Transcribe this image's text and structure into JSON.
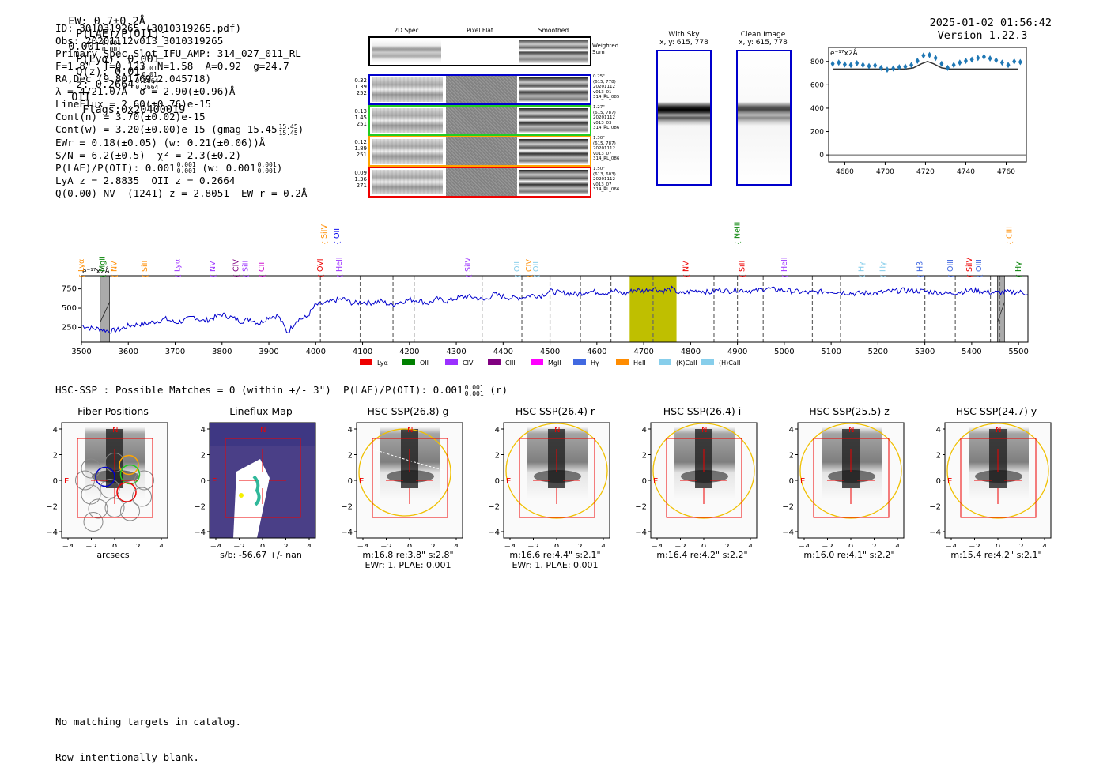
{
  "header": {
    "ew": "EW: 0.7±0.2Å",
    "plae_label": "P(LAE)/P(OII):",
    "plae_val": "0.001",
    "plae_hi": "0.001",
    "plae_lo": "0.001",
    "plya": "P(Lyα): 0.001",
    "qz_label": "Q(z): 0.01",
    "qz_hi": "0.01",
    "qz_lo": "0.01",
    "z_label": "z: 0.2664",
    "z_hi": "0.2664",
    "z_lo": "0.2664",
    "z_line": "OII",
    "flags": "Flags:0x20400019",
    "timestamp": "2025-01-02 01:56:42",
    "version": "Version 1.22.3"
  },
  "info": {
    "id": "ID: 3010319265 (3010319265.pdf)",
    "obs": "Obs: 20201112v013_3010319265",
    "primary": "Primary Spec_Slot_IFU_AMP: 314_027_011_RL",
    "params": "F=1.8\"  T=0.123  N=1.58  A=0.92  g=24.7",
    "radec": "RA,Dec (9.801769,2.045718)",
    "lambda": "λ = 4721.07Å  σ = 2.90(±0.96)Å",
    "lineflux": "LineFlux = 2.60(±0.76)e-15",
    "contn": "Cont(n) = 3.70(±0.02)e-15",
    "contw": "Cont(w) = 3.20(±0.00)e-15 (gmag 15.45",
    "gmag_hi": "15.45",
    "gmag_lo": "15.45",
    "ewr": "EWr = 0.18(±0.05) (w: 0.21(±0.06))Å",
    "sn": "S/N = 6.2(±0.5)  χ² = 2.3(±0.2)",
    "plae2_a": "P(LAE)/P(OII): 0.001",
    "plae2_b": "(w: 0.001",
    "plae2_hi": "0.001",
    "plae2_lo": "0.001",
    "plae2_whi": "0.001",
    "plae2_wlo": "0.001",
    "lya": "LyA z = 2.8835  OII z = 0.2664",
    "q": "Q(0.00) NV  (1241) z = 2.8051  EW r = 0.2Å"
  },
  "cutouts": {
    "col_2d": "2D Spec",
    "col_flat": "Pixel Flat",
    "col_smooth": "Smoothed",
    "weighted": "Weighted Sum",
    "rows": [
      {
        "nums": [
          "0.32",
          "1.39",
          "252"
        ],
        "meta": [
          "0.25\"",
          "(615, 778)",
          "20201112",
          "v013_01",
          "314_RL_085"
        ],
        "color": "#0000cc"
      },
      {
        "nums": [
          "0.13",
          "1.45",
          "251"
        ],
        "meta": [
          "1.27\"",
          "(615, 787)",
          "20201112",
          "v013_03",
          "314_RL_086"
        ],
        "color": "#22cc22"
      },
      {
        "nums": [
          "0.12",
          "1.89",
          "251"
        ],
        "meta": [
          "1.30\"",
          "(615, 787)",
          "20201112",
          "v013_07",
          "314_RL_086"
        ],
        "color": "#ffa500"
      },
      {
        "nums": [
          "0.09",
          "1.36",
          "271"
        ],
        "meta": [
          "1.50\"",
          "(613, 603)",
          "20201112",
          "v013_07",
          "314_RL_066"
        ],
        "color": "#ee0000"
      }
    ]
  },
  "sky": {
    "with_sky": "With Sky",
    "with_sky_xy": "x, y: 615, 778",
    "clean": "Clean Image",
    "clean_xy": "x, y: 615, 778"
  },
  "chart_data": [
    {
      "type": "scatter",
      "name": "line-zoom",
      "ylabel": "e⁻¹⁷x2Å",
      "xlim": [
        4672,
        4770
      ],
      "ylim": [
        -60,
        920
      ],
      "xticks": [
        4680,
        4700,
        4720,
        4740,
        4760
      ],
      "yticks": [
        0,
        200,
        400,
        600,
        800
      ],
      "series": [
        {
          "name": "data",
          "color": "#1f77b4",
          "x": [
            4674,
            4677,
            4680,
            4683,
            4686,
            4689,
            4692,
            4695,
            4698,
            4701,
            4704,
            4707,
            4710,
            4713,
            4716,
            4719,
            4722,
            4725,
            4728,
            4731,
            4734,
            4737,
            4740,
            4743,
            4746,
            4749,
            4752,
            4755,
            4758,
            4761,
            4764,
            4767
          ],
          "y": [
            780,
            790,
            775,
            770,
            785,
            770,
            760,
            765,
            745,
            730,
            740,
            750,
            755,
            770,
            805,
            850,
            855,
            830,
            780,
            745,
            770,
            790,
            805,
            815,
            830,
            840,
            825,
            810,
            790,
            770,
            800,
            795
          ]
        },
        {
          "name": "fit",
          "color": "#333333",
          "x": [
            4674,
            4700,
            4710,
            4714,
            4718,
            4721,
            4724,
            4728,
            4732,
            4740,
            4766
          ],
          "y": [
            735,
            735,
            735,
            745,
            780,
            800,
            780,
            745,
            735,
            735,
            735
          ]
        }
      ]
    },
    {
      "type": "line",
      "name": "full-spectrum",
      "ylabel": "e⁻¹⁷x2Å",
      "xlim": [
        3500,
        5520
      ],
      "ylim": [
        60,
        920
      ],
      "xticks": [
        3500,
        3600,
        3700,
        3800,
        3900,
        4000,
        4100,
        4200,
        4300,
        4400,
        4500,
        4600,
        4700,
        4800,
        4900,
        5000,
        5100,
        5200,
        5300,
        5400,
        5500
      ],
      "yticks": [
        250,
        500,
        750
      ],
      "color": "#0000cc",
      "anchors_x": [
        3500,
        3520,
        3540,
        3560,
        3580,
        3600,
        3620,
        3640,
        3660,
        3680,
        3700,
        3720,
        3740,
        3760,
        3780,
        3800,
        3820,
        3840,
        3860,
        3880,
        3900,
        3920,
        3940,
        3960,
        3980,
        4000,
        4020,
        4040,
        4060,
        4080,
        4100,
        4120,
        4140,
        4160,
        4180,
        4200,
        4220,
        4240,
        4260,
        4280,
        4300,
        4320,
        4340,
        4360,
        4380,
        4400,
        4420,
        4440,
        4460,
        4480,
        4500,
        4520,
        4540,
        4560,
        4580,
        4600,
        4620,
        4640,
        4660,
        4680,
        4700,
        4720,
        4740,
        4760,
        4780,
        4800,
        4820,
        4840,
        4860,
        4880,
        4900,
        4920,
        4940,
        4960,
        4980,
        5000,
        5050,
        5100,
        5150,
        5200,
        5250,
        5300,
        5350,
        5400,
        5450,
        5500,
        5520
      ],
      "anchors_y": [
        280,
        240,
        230,
        200,
        220,
        270,
        290,
        300,
        330,
        360,
        310,
        340,
        390,
        330,
        370,
        420,
        380,
        330,
        360,
        300,
        390,
        400,
        180,
        350,
        380,
        540,
        560,
        600,
        620,
        560,
        580,
        570,
        590,
        540,
        580,
        610,
        600,
        560,
        620,
        590,
        630,
        650,
        640,
        600,
        680,
        650,
        630,
        640,
        670,
        660,
        720,
        700,
        690,
        680,
        720,
        710,
        700,
        720,
        680,
        740,
        720,
        760,
        720,
        750,
        680,
        720,
        730,
        700,
        740,
        720,
        740,
        730,
        720,
        760,
        740,
        730,
        700,
        720,
        690,
        700,
        730,
        720,
        690,
        730,
        700,
        710,
        690
      ],
      "sky_bands": [
        [
          3540,
          3560
        ],
        [
          5455,
          5470
        ]
      ],
      "highlight": [
        4670,
        4770
      ],
      "dashed": [
        4010,
        4095,
        4165,
        4210,
        4355,
        4440,
        4500,
        4565,
        4630,
        4720,
        4850,
        4900,
        4955,
        5060,
        5120,
        5300,
        5365,
        5440,
        5460
      ],
      "lines": [
        {
          "label": "Lyα",
          "x": 3500,
          "color": "#ff8c00",
          "row": 1
        },
        {
          "label": "MgII",
          "x": 3545,
          "color": "#008000",
          "row": 1
        },
        {
          "label": "NV",
          "x": 3570,
          "color": "#ff8c00",
          "row": 1
        },
        {
          "label": "SiII",
          "x": 3635,
          "color": "#ff8c00",
          "row": 1
        },
        {
          "label": "Lyα",
          "x": 3705,
          "color": "#9b30ff",
          "row": 1
        },
        {
          "label": "NV",
          "x": 3780,
          "color": "#9b30ff",
          "row": 1
        },
        {
          "label": "CIV",
          "x": 3830,
          "color": "#800080",
          "row": 1
        },
        {
          "label": "SiII",
          "x": 3850,
          "color": "#9b30ff",
          "row": 1
        },
        {
          "label": "CII",
          "x": 3885,
          "color": "#cc00cc",
          "row": 1
        },
        {
          "label": "OVI",
          "x": 4010,
          "color": "#ee0000",
          "row": 1
        },
        {
          "label": "SiIV",
          "x": 4018,
          "color": "#ff8c00",
          "row": 0
        },
        {
          "label": "OII",
          "x": 4045,
          "color": "#0000ee",
          "row": 0
        },
        {
          "label": "HeII",
          "x": 4050,
          "color": "#9b30ff",
          "row": 1
        },
        {
          "label": "SiIV",
          "x": 4325,
          "color": "#9b30ff",
          "row": 1
        },
        {
          "label": "OII",
          "x": 4430,
          "color": "#87ceeb",
          "row": 1
        },
        {
          "label": "CIV",
          "x": 4455,
          "color": "#ff8c00",
          "row": 1
        },
        {
          "label": "OII",
          "x": 4470,
          "color": "#87ceeb",
          "row": 1
        },
        {
          "label": "NV",
          "x": 4790,
          "color": "#ee0000",
          "row": 1
        },
        {
          "label": "NeIII",
          "x": 4900,
          "color": "#008000",
          "row": 0
        },
        {
          "label": "SiII",
          "x": 4910,
          "color": "#ee0000",
          "row": 1
        },
        {
          "label": "HeII",
          "x": 5000,
          "color": "#9b30ff",
          "row": 1
        },
        {
          "label": "Hγ",
          "x": 5165,
          "color": "#87ceeb",
          "row": 1
        },
        {
          "label": "Hγ",
          "x": 5210,
          "color": "#87ceeb",
          "row": 1
        },
        {
          "label": "Hβ",
          "x": 5290,
          "color": "#4169e1",
          "row": 1
        },
        {
          "label": "OIII",
          "x": 5355,
          "color": "#4169e1",
          "row": 1
        },
        {
          "label": "SiIV",
          "x": 5395,
          "color": "#ee0000",
          "row": 1
        },
        {
          "label": "OIII",
          "x": 5415,
          "color": "#4169e1",
          "row": 1
        },
        {
          "label": "CIII",
          "x": 5480,
          "color": "#ff8c00",
          "row": 0
        },
        {
          "label": "Hγ",
          "x": 5500,
          "color": "#008000",
          "row": 1
        }
      ],
      "legend": [
        {
          "label": "Lyα",
          "color": "#ee0000"
        },
        {
          "label": "OII",
          "color": "#008000"
        },
        {
          "label": "CIV",
          "color": "#9b30ff"
        },
        {
          "label": "CIII",
          "color": "#800080"
        },
        {
          "label": "MgII",
          "color": "#ff00ff"
        },
        {
          "label": "Hγ",
          "color": "#4169e1"
        },
        {
          "label": "HeII",
          "color": "#ff8c00"
        },
        {
          "label": "(K)CaII",
          "color": "#87ceeb"
        },
        {
          "label": "(H)CaII",
          "color": "#87ceeb"
        }
      ]
    }
  ],
  "hsc": {
    "header": "HSC-SSP : Possible Matches = 0 (within +/- 3\")  P(LAE)/P(OII): 0.001",
    "header_hi": "0.001",
    "header_lo": "0.001",
    "header_tail": "(r)",
    "ticks": [
      "4",
      "2",
      "0",
      "−2",
      "−4"
    ],
    "xticks": [
      "−4",
      "−2",
      "0",
      "2",
      "4"
    ],
    "n_label": "N",
    "e_label": "E",
    "panels": [
      {
        "title": "Fiber Positions",
        "cap1": "arcsecs",
        "cap2": ""
      },
      {
        "title": "Lineflux Map",
        "cap1": "s/b: -56.67 +/- nan",
        "cap2": ""
      },
      {
        "title": "HSC SSP(26.8) g",
        "cap1": "m:16.8  re:3.8\"  s:2.8\"",
        "cap2": "EWr: 1. PLAE: 0.001"
      },
      {
        "title": "HSC SSP(26.4) r",
        "cap1": "m:16.6  re:4.4\"  s:2.1\"",
        "cap2": "EWr: 1. PLAE: 0.001"
      },
      {
        "title": "HSC SSP(26.4) i",
        "cap1": "m:16.4  re:4.2\"  s:2.2\"",
        "cap2": ""
      },
      {
        "title": "HSC SSP(25.5) z",
        "cap1": "m:16.0  re:4.1\"  s:2.2\"",
        "cap2": ""
      },
      {
        "title": "HSC SSP(24.7) y",
        "cap1": "m:15.4  re:4.2\"  s:2.1\"",
        "cap2": ""
      }
    ]
  },
  "footer": {
    "line1": "No matching targets in catalog.",
    "line2": "Row intentionally blank."
  }
}
